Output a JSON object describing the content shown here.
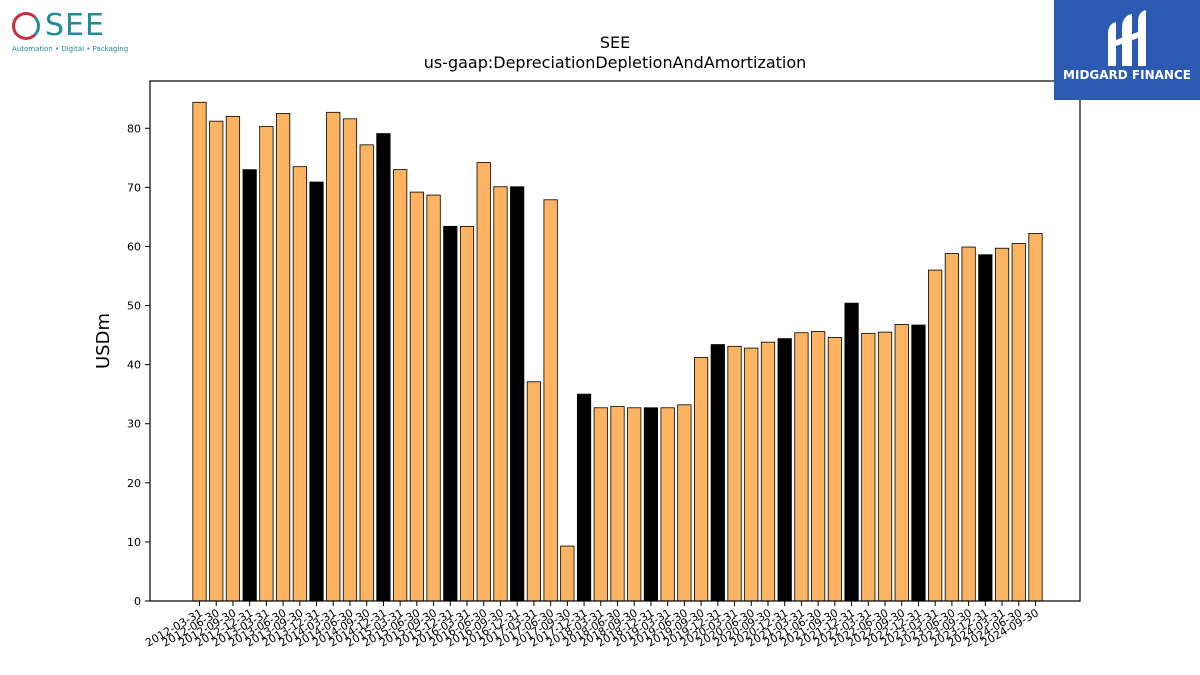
{
  "logos": {
    "left_word": "SEE",
    "left_tagline": "Automation • Digital • Packaging",
    "right_brand": "MIDGARD FINANCE"
  },
  "colors": {
    "bar_default": "#fdb462",
    "bar_highlight": "#000000",
    "bar_edge": "#000000",
    "brand_blue": "#2c5ab3",
    "brand_teal": "#1f8c97"
  },
  "chart_data": {
    "type": "bar",
    "title": "SEE",
    "subtitle": "us-gaap:DepreciationDepletionAndAmortization",
    "xlabel": "",
    "ylabel": "USDm",
    "ylim": [
      0,
      88
    ],
    "yticks": [
      0,
      10,
      20,
      30,
      40,
      50,
      60,
      70,
      80
    ],
    "grid": false,
    "categories": [
      "2012-03-31",
      "2012-06-30",
      "2012-09-30",
      "2012-12-31",
      "2013-03-31",
      "2013-06-30",
      "2013-09-30",
      "2013-12-31",
      "2014-03-31",
      "2014-06-30",
      "2014-09-30",
      "2014-12-31",
      "2015-03-31",
      "2015-06-30",
      "2015-09-30",
      "2015-12-31",
      "2016-03-31",
      "2016-06-30",
      "2016-09-30",
      "2016-12-31",
      "2017-03-31",
      "2017-06-30",
      "2017-09-30",
      "2017-12-31",
      "2018-03-31",
      "2018-06-30",
      "2018-09-30",
      "2018-12-31",
      "2019-03-31",
      "2019-06-30",
      "2019-09-30",
      "2019-12-31",
      "2020-03-31",
      "2020-06-30",
      "2020-09-30",
      "2020-12-31",
      "2021-03-31",
      "2021-06-30",
      "2021-09-30",
      "2021-12-31",
      "2022-03-31",
      "2022-06-30",
      "2022-09-30",
      "2022-12-31",
      "2023-03-31",
      "2023-06-30",
      "2023-09-30",
      "2023-12-31",
      "2024-03-31",
      "2024-06-30",
      "2024-09-30"
    ],
    "values": [
      84.4,
      81.2,
      82.0,
      73.0,
      80.3,
      82.5,
      73.5,
      70.9,
      82.7,
      81.6,
      77.2,
      79.1,
      73.0,
      69.2,
      68.7,
      63.4,
      63.4,
      74.2,
      70.1,
      70.1,
      37.1,
      67.9,
      9.3,
      35.0,
      32.7,
      32.9,
      32.7,
      32.7,
      32.7,
      33.2,
      41.2,
      43.4,
      43.1,
      42.8,
      43.8,
      44.4,
      45.4,
      45.6,
      44.6,
      50.4,
      45.3,
      45.5,
      46.8,
      46.7,
      56.0,
      58.8,
      59.9,
      58.6,
      59.7,
      60.5,
      62.2
    ],
    "highlight": [
      false,
      false,
      false,
      true,
      false,
      false,
      false,
      true,
      false,
      false,
      false,
      true,
      false,
      false,
      false,
      true,
      false,
      false,
      false,
      true,
      false,
      false,
      false,
      true,
      false,
      false,
      false,
      true,
      false,
      false,
      false,
      true,
      false,
      false,
      false,
      true,
      false,
      false,
      false,
      true,
      false,
      false,
      false,
      true,
      false,
      false,
      false,
      true,
      false,
      false,
      false
    ]
  }
}
